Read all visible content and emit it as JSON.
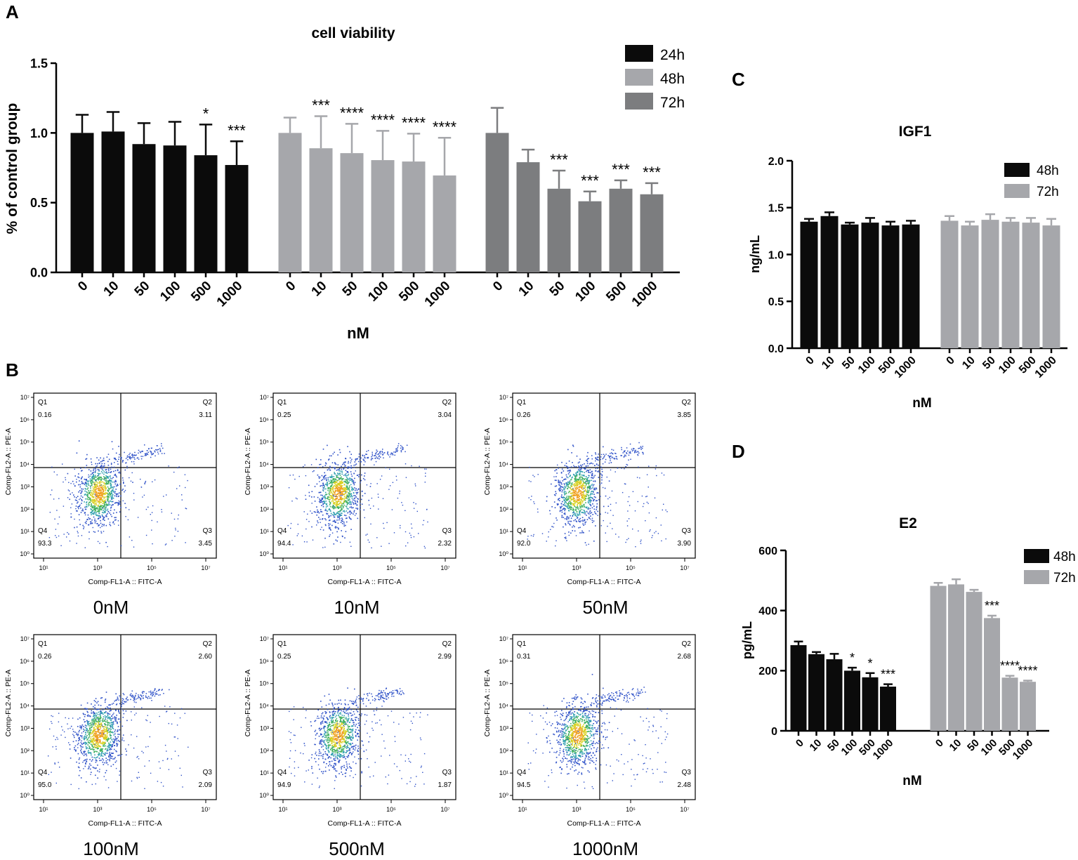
{
  "colors": {
    "c24h": "#0b0b0b",
    "c48h": "#a6a7ab",
    "c72h": "#7c7d7f",
    "c48hD": "#0b0b0b",
    "c72hD": "#a6a7ab",
    "dot": "#2f52c8"
  },
  "panel_labels": {
    "a": "A",
    "b": "B",
    "c": "C",
    "d": "D"
  },
  "chart_data": [
    {
      "id": "A",
      "type": "bar",
      "title": "cell viability",
      "xlabel": "nM",
      "ylabel": "% of control group",
      "ylim": [
        0,
        1.5
      ],
      "yticks": [
        "0.0",
        "0.5",
        "1.0",
        "1.5"
      ],
      "categories": [
        "0",
        "10",
        "50",
        "100",
        "500",
        "1000"
      ],
      "series": [
        {
          "name": "24h",
          "color": "#0b0b0b",
          "values": [
            1.0,
            1.01,
            0.92,
            0.91,
            0.84,
            0.77
          ],
          "errors": [
            0.13,
            0.14,
            0.15,
            0.17,
            0.22,
            0.17
          ],
          "stars": [
            "",
            "",
            "",
            "",
            "*",
            "***"
          ]
        },
        {
          "name": "48h",
          "color": "#a6a7ab",
          "values": [
            1.0,
            0.89,
            0.855,
            0.805,
            0.795,
            0.695
          ],
          "errors": [
            0.11,
            0.23,
            0.21,
            0.21,
            0.2,
            0.27
          ],
          "stars": [
            "",
            "***",
            "****",
            "****",
            "****",
            "****"
          ]
        },
        {
          "name": "72h",
          "color": "#7c7d7f",
          "values": [
            1.0,
            0.79,
            0.6,
            0.51,
            0.6,
            0.56
          ],
          "errors": [
            0.18,
            0.09,
            0.13,
            0.07,
            0.06,
            0.08
          ],
          "stars": [
            "",
            "",
            "***",
            "***",
            "***",
            "***"
          ]
        }
      ],
      "legend": [
        "24h",
        "48h",
        "72h"
      ]
    },
    {
      "id": "C",
      "type": "bar",
      "title": "IGF1",
      "xlabel": "nM",
      "ylabel": "ng/mL",
      "ylim": [
        0,
        2.0
      ],
      "yticks": [
        "0.0",
        "0.5",
        "1.0",
        "1.5",
        "2.0"
      ],
      "categories": [
        "0",
        "10",
        "50",
        "100",
        "500",
        "1000"
      ],
      "series": [
        {
          "name": "48h",
          "color": "#0b0b0b",
          "values": [
            1.35,
            1.41,
            1.32,
            1.34,
            1.31,
            1.32
          ],
          "errors": [
            0.03,
            0.04,
            0.02,
            0.05,
            0.04,
            0.04
          ],
          "stars": [
            "",
            "",
            "",
            "",
            "",
            ""
          ]
        },
        {
          "name": "72h",
          "color": "#a6a7ab",
          "values": [
            1.36,
            1.31,
            1.37,
            1.35,
            1.34,
            1.31
          ],
          "errors": [
            0.05,
            0.04,
            0.06,
            0.04,
            0.05,
            0.07
          ],
          "stars": [
            "",
            "",
            "",
            "",
            "",
            ""
          ]
        }
      ],
      "legend": [
        "48h",
        "72h"
      ]
    },
    {
      "id": "D",
      "type": "bar",
      "title": "E2",
      "xlabel": "nM",
      "ylabel": "pg/mL",
      "ylim": [
        0,
        600
      ],
      "yticks": [
        "0",
        "200",
        "400",
        "600"
      ],
      "categories": [
        "0",
        "10",
        "50",
        "100",
        "500",
        "1000"
      ],
      "series": [
        {
          "name": "48h",
          "color": "#0b0b0b",
          "values": [
            285,
            255,
            238,
            200,
            178,
            147
          ],
          "errors": [
            12,
            7,
            18,
            10,
            14,
            8
          ],
          "stars": [
            "",
            "",
            "",
            "*",
            "*",
            "***"
          ]
        },
        {
          "name": "72h",
          "color": "#a6a7ab",
          "values": [
            482,
            487,
            462,
            375,
            177,
            163
          ],
          "errors": [
            10,
            17,
            7,
            8,
            6,
            4
          ],
          "stars": [
            "",
            "",
            "",
            "***",
            "****",
            "****"
          ]
        }
      ],
      "legend": [
        "48h",
        "72h"
      ]
    },
    {
      "id": "B",
      "type": "scatter",
      "xlabel": "Comp-FL1-A :: FITC-A",
      "ylabel": "Comp-FL2-A :: PE-A",
      "xticks": [
        "10¹",
        "10³",
        "10⁵",
        "10⁷"
      ],
      "yticks": [
        "10⁰",
        "10¹",
        "10²",
        "10³",
        "10⁴",
        "10⁵",
        "10⁶",
        "10⁷"
      ],
      "quadrant_names": [
        "Q1",
        "Q2",
        "Q3",
        "Q4"
      ],
      "plots": [
        {
          "caption": "0nM",
          "q1": "0.16",
          "q2": "3.11",
          "q3": "3.45",
          "q4": "93.3"
        },
        {
          "caption": "10nM",
          "q1": "0.25",
          "q2": "3.04",
          "q3": "2.32",
          "q4": "94.4"
        },
        {
          "caption": "50nM",
          "q1": "0.26",
          "q2": "3.85",
          "q3": "3.90",
          "q4": "92.0"
        },
        {
          "caption": "100nM",
          "q1": "0.26",
          "q2": "2.60",
          "q3": "2.09",
          "q4": "95.0"
        },
        {
          "caption": "500nM",
          "q1": "0.25",
          "q2": "2.99",
          "q3": "1.87",
          "q4": "94.9"
        },
        {
          "caption": "1000nM",
          "q1": "0.31",
          "q2": "2.68",
          "q3": "2.48",
          "q4": "94.5"
        }
      ]
    }
  ]
}
